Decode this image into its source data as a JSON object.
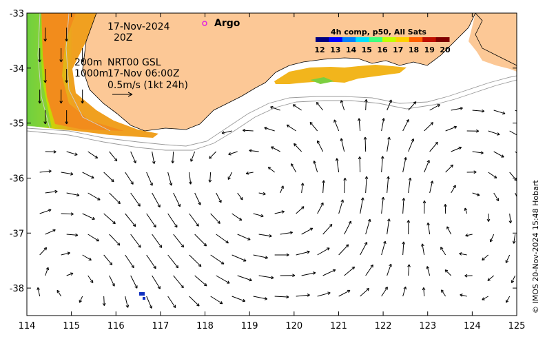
{
  "map": {
    "date": "17-Nov-2024",
    "time": "20Z",
    "depth_label_200": "200m",
    "depth_label_1000": "1000m",
    "product": "NRT00 GSL",
    "product_time": "17-Nov 06:00Z",
    "scale_label": "0.5m/s (1kt 24h)",
    "argo_label": "Argo",
    "colorbar_title": "4h comp, p50, All Sats",
    "colorbar_ticks": [
      "12",
      "13",
      "14",
      "15",
      "16",
      "17",
      "18",
      "19",
      "20"
    ],
    "colorbar_colors": [
      "#00007f",
      "#0000ff",
      "#0080ff",
      "#00e0ff",
      "#40ff80",
      "#c0ff00",
      "#ffd000",
      "#ff6000",
      "#c01000",
      "#800000"
    ],
    "credit": "© IMOS 20-Nov-2024 15:48 Hobart",
    "x_ticks": [
      "114",
      "115",
      "116",
      "117",
      "118",
      "119",
      "120",
      "121",
      "122",
      "123",
      "124",
      "125"
    ],
    "y_ticks": [
      "-33",
      "-34",
      "-35",
      "-36",
      "-37",
      "-38"
    ],
    "x_range": [
      114,
      125
    ],
    "y_range": [
      -38.5,
      -33
    ],
    "land_color": "#fcc896",
    "argo_color": "#e020e0"
  }
}
